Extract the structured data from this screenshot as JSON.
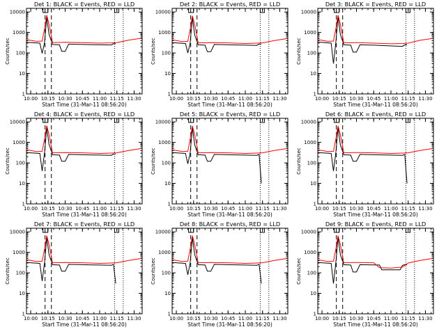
{
  "figure": {
    "start_time_label": "Start Time (31-Mar-11 08:56:20)",
    "ylabel": "Counts/sec",
    "x_tick_labels": [
      "10:00",
      "10:15",
      "10:30",
      "10:45",
      "11:00",
      "11:15",
      "11:30"
    ],
    "y_tick_labels": [
      "1",
      "10",
      "100",
      "1000",
      "10000"
    ],
    "colors": {
      "events": "#000000",
      "lld": "#ff0000",
      "axes": "#000000"
    }
  },
  "chart_data": [
    {
      "type": "line",
      "title": "Det 1: BLACK = Events, RED = LLD",
      "x_unit": "time",
      "xlim": [
        "09:56:20",
        "11:37:00"
      ],
      "ylim": [
        1,
        15000
      ],
      "yscale": "log",
      "dashed_lines": [
        "10:12:30",
        "10:18:00"
      ],
      "dotted_lines": [
        "11:13:00",
        "11:20:30"
      ],
      "series": [
        {
          "name": "Events",
          "x": [
            "09:56",
            "10:08",
            "10:10",
            "10:12",
            "10:14",
            "10:16",
            "10:19",
            "10:25",
            "10:27",
            "10:30",
            "10:33",
            "10:45",
            "11:00",
            "11:10",
            "11:12",
            "11:14"
          ],
          "y": [
            330,
            300,
            95,
            300,
            5500,
            800,
            260,
            250,
            120,
            120,
            270,
            260,
            250,
            245,
            280,
            280
          ]
        },
        {
          "name": "LLD",
          "x": [
            "09:56",
            "10:05",
            "10:10",
            "10:12",
            "10:14",
            "10:16",
            "10:19",
            "10:30",
            "10:45",
            "11:00",
            "11:10",
            "11:15",
            "11:25",
            "11:36"
          ],
          "y": [
            450,
            370,
            380,
            1500,
            7000,
            2500,
            320,
            330,
            320,
            300,
            310,
            320,
            420,
            520
          ]
        }
      ]
    },
    {
      "type": "line",
      "title": "Det 2: BLACK = Events, RED = LLD",
      "x_unit": "time",
      "xlim": [
        "09:56:20",
        "11:37:00"
      ],
      "ylim": [
        1,
        15000
      ],
      "yscale": "log",
      "dashed_lines": [
        "10:12:30",
        "10:18:00"
      ],
      "dotted_lines": [
        "11:13:00",
        "11:20:30"
      ],
      "series": [
        {
          "name": "Events",
          "x": [
            "09:56",
            "10:08",
            "10:10",
            "10:12",
            "10:14",
            "10:16",
            "10:19",
            "10:25",
            "10:27",
            "10:30",
            "10:33",
            "10:45",
            "11:00",
            "11:10",
            "11:12",
            "11:14"
          ],
          "y": [
            320,
            290,
            100,
            290,
            5200,
            750,
            250,
            240,
            115,
            115,
            260,
            250,
            240,
            235,
            270,
            270
          ]
        },
        {
          "name": "LLD",
          "x": [
            "09:56",
            "10:05",
            "10:10",
            "10:12",
            "10:14",
            "10:16",
            "10:19",
            "10:30",
            "10:45",
            "11:00",
            "11:10",
            "11:15",
            "11:25",
            "11:36"
          ],
          "y": [
            440,
            360,
            370,
            1400,
            6500,
            2400,
            310,
            320,
            310,
            290,
            300,
            310,
            400,
            500
          ]
        }
      ]
    },
    {
      "type": "line",
      "title": "Det 3: BLACK = Events, RED = LLD",
      "x_unit": "time",
      "xlim": [
        "09:56:20",
        "11:37:00"
      ],
      "ylim": [
        1,
        15000
      ],
      "yscale": "log",
      "dashed_lines": [
        "10:12:30",
        "10:18:00"
      ],
      "dotted_lines": [
        "11:13:00",
        "11:20:30"
      ],
      "series": [
        {
          "name": "Events",
          "x": [
            "09:56",
            "10:08",
            "10:10",
            "10:12",
            "10:14",
            "10:16",
            "10:19",
            "10:25",
            "10:27",
            "10:30",
            "10:33",
            "10:45",
            "11:00",
            "11:10",
            "11:12",
            "11:14"
          ],
          "y": [
            340,
            300,
            30,
            300,
            5600,
            800,
            250,
            240,
            110,
            110,
            250,
            240,
            220,
            210,
            250,
            250
          ]
        },
        {
          "name": "LLD",
          "x": [
            "09:56",
            "10:05",
            "10:10",
            "10:12",
            "10:14",
            "10:16",
            "10:19",
            "10:30",
            "10:45",
            "11:00",
            "11:10",
            "11:15",
            "11:25",
            "11:36"
          ],
          "y": [
            450,
            370,
            380,
            1500,
            7000,
            2500,
            310,
            320,
            300,
            280,
            290,
            300,
            410,
            510
          ]
        }
      ]
    },
    {
      "type": "line",
      "title": "Det 4: BLACK = Events, RED = LLD",
      "x_unit": "time",
      "xlim": [
        "09:56:20",
        "11:37:00"
      ],
      "ylim": [
        1,
        15000
      ],
      "yscale": "log",
      "dashed_lines": [
        "10:12:30",
        "10:18:00"
      ],
      "dotted_lines": [
        "11:13:00",
        "11:20:30"
      ],
      "series": [
        {
          "name": "Events",
          "x": [
            "09:56",
            "10:08",
            "10:10",
            "10:12",
            "10:14",
            "10:16",
            "10:19",
            "10:25",
            "10:27",
            "10:30",
            "10:33",
            "10:45",
            "11:00",
            "11:10",
            "11:12",
            "11:14"
          ],
          "y": [
            320,
            290,
            40,
            290,
            5300,
            780,
            250,
            240,
            120,
            120,
            260,
            250,
            240,
            235,
            270,
            270
          ]
        },
        {
          "name": "LLD",
          "x": [
            "09:56",
            "10:05",
            "10:10",
            "10:12",
            "10:14",
            "10:16",
            "10:19",
            "10:30",
            "10:45",
            "11:00",
            "11:10",
            "11:15",
            "11:25",
            "11:36"
          ],
          "y": [
            440,
            360,
            370,
            1400,
            6600,
            2400,
            310,
            320,
            310,
            290,
            300,
            310,
            400,
            500
          ]
        }
      ]
    },
    {
      "type": "line",
      "title": "Det 5: BLACK = Events, RED = LLD",
      "x_unit": "time",
      "xlim": [
        "09:56:20",
        "11:37:00"
      ],
      "ylim": [
        1,
        15000
      ],
      "yscale": "log",
      "dashed_lines": [
        "10:12:30",
        "10:18:00"
      ],
      "dotted_lines": [
        "11:13:00",
        "11:20:30"
      ],
      "series": [
        {
          "name": "Events",
          "x": [
            "09:56",
            "10:08",
            "10:10",
            "10:12",
            "10:14",
            "10:16",
            "10:19",
            "10:25",
            "10:27",
            "10:30",
            "10:33",
            "10:45",
            "11:00",
            "11:10",
            "11:12",
            "11:14"
          ],
          "y": [
            320,
            290,
            90,
            290,
            5200,
            760,
            250,
            240,
            120,
            120,
            260,
            250,
            240,
            235,
            260,
            10
          ]
        },
        {
          "name": "LLD",
          "x": [
            "09:56",
            "10:05",
            "10:10",
            "10:12",
            "10:14",
            "10:16",
            "10:19",
            "10:30",
            "10:45",
            "11:00",
            "11:10",
            "11:15",
            "11:25",
            "11:36"
          ],
          "y": [
            440,
            360,
            370,
            1400,
            6400,
            2400,
            310,
            320,
            310,
            290,
            300,
            310,
            400,
            500
          ]
        }
      ]
    },
    {
      "type": "line",
      "title": "Det 6: BLACK = Events, RED = LLD",
      "x_unit": "time",
      "xlim": [
        "09:56:20",
        "11:37:00"
      ],
      "ylim": [
        1,
        15000
      ],
      "yscale": "log",
      "dashed_lines": [
        "10:12:30",
        "10:18:00"
      ],
      "dotted_lines": [
        "11:13:00",
        "11:20:30"
      ],
      "series": [
        {
          "name": "Events",
          "x": [
            "09:56",
            "10:08",
            "10:10",
            "10:12",
            "10:14",
            "10:16",
            "10:19",
            "10:25",
            "10:27",
            "10:30",
            "10:33",
            "10:45",
            "11:00",
            "11:10",
            "11:12",
            "11:14"
          ],
          "y": [
            320,
            290,
            40,
            290,
            5200,
            760,
            250,
            240,
            120,
            120,
            260,
            250,
            240,
            235,
            260,
            10
          ]
        },
        {
          "name": "LLD",
          "x": [
            "09:56",
            "10:05",
            "10:10",
            "10:12",
            "10:14",
            "10:16",
            "10:19",
            "10:30",
            "10:45",
            "11:00",
            "11:10",
            "11:15",
            "11:25",
            "11:36"
          ],
          "y": [
            440,
            360,
            370,
            1400,
            6400,
            2400,
            310,
            320,
            310,
            290,
            300,
            310,
            400,
            500
          ]
        }
      ]
    },
    {
      "type": "line",
      "title": "Det 7: BLACK = Events, RED = LLD",
      "x_unit": "time",
      "xlim": [
        "09:56:20",
        "11:37:00"
      ],
      "ylim": [
        1,
        15000
      ],
      "yscale": "log",
      "dashed_lines": [
        "10:12:30",
        "10:18:00"
      ],
      "dotted_lines": [
        "11:13:00",
        "11:20:30"
      ],
      "series": [
        {
          "name": "Events",
          "x": [
            "09:56",
            "10:08",
            "10:10",
            "10:12",
            "10:14",
            "10:16",
            "10:19",
            "10:25",
            "10:27",
            "10:30",
            "10:33",
            "10:45",
            "11:00",
            "11:10",
            "11:12",
            "11:14"
          ],
          "y": [
            320,
            290,
            40,
            290,
            5300,
            770,
            250,
            240,
            120,
            120,
            260,
            250,
            240,
            235,
            260,
            30
          ]
        },
        {
          "name": "LLD",
          "x": [
            "09:56",
            "10:05",
            "10:10",
            "10:12",
            "10:14",
            "10:16",
            "10:19",
            "10:30",
            "10:45",
            "11:00",
            "11:10",
            "11:15",
            "11:25",
            "11:36"
          ],
          "y": [
            440,
            360,
            370,
            1400,
            6500,
            2400,
            310,
            320,
            310,
            290,
            300,
            310,
            400,
            500
          ]
        }
      ]
    },
    {
      "type": "line",
      "title": "Det 8: BLACK = Events, RED = LLD",
      "x_unit": "time",
      "xlim": [
        "09:56:20",
        "11:37:00"
      ],
      "ylim": [
        1,
        15000
      ],
      "yscale": "log",
      "dashed_lines": [
        "10:12:30",
        "10:18:00"
      ],
      "dotted_lines": [
        "11:13:00",
        "11:20:30"
      ],
      "series": [
        {
          "name": "Events",
          "x": [
            "09:56",
            "10:08",
            "10:10",
            "10:12",
            "10:14",
            "10:16",
            "10:19",
            "10:25",
            "10:27",
            "10:30",
            "10:33",
            "10:45",
            "11:00",
            "11:10",
            "11:12",
            "11:14"
          ],
          "y": [
            320,
            290,
            80,
            290,
            5300,
            770,
            250,
            240,
            120,
            120,
            260,
            250,
            240,
            235,
            260,
            30
          ]
        },
        {
          "name": "LLD",
          "x": [
            "09:56",
            "10:05",
            "10:10",
            "10:12",
            "10:14",
            "10:16",
            "10:19",
            "10:30",
            "10:45",
            "11:00",
            "11:10",
            "11:15",
            "11:25",
            "11:36"
          ],
          "y": [
            440,
            360,
            370,
            1400,
            6500,
            2400,
            310,
            320,
            310,
            290,
            300,
            310,
            400,
            500
          ]
        }
      ]
    },
    {
      "type": "line",
      "title": "Det 9: BLACK = Events, RED = LLD",
      "x_unit": "time",
      "xlim": [
        "09:56:20",
        "11:37:00"
      ],
      "ylim": [
        1,
        15000
      ],
      "yscale": "log",
      "dashed_lines": [
        "10:12:30",
        "10:18:00"
      ],
      "dotted_lines": [
        "11:13:00",
        "11:20:30"
      ],
      "series": [
        {
          "name": "Events",
          "x": [
            "09:56",
            "10:08",
            "10:10",
            "10:12",
            "10:14",
            "10:16",
            "10:19",
            "10:25",
            "10:27",
            "10:30",
            "10:33",
            "10:50",
            "10:52",
            "11:00",
            "11:08",
            "11:10",
            "11:12",
            "11:14"
          ],
          "y": [
            320,
            290,
            30,
            290,
            5300,
            770,
            250,
            240,
            110,
            110,
            250,
            240,
            140,
            140,
            140,
            230,
            250,
            250
          ]
        },
        {
          "name": "LLD",
          "x": [
            "09:56",
            "10:05",
            "10:10",
            "10:12",
            "10:14",
            "10:16",
            "10:19",
            "10:30",
            "10:45",
            "10:50",
            "11:00",
            "11:10",
            "11:15",
            "11:25",
            "11:36"
          ],
          "y": [
            440,
            360,
            370,
            1400,
            6500,
            2400,
            310,
            320,
            310,
            180,
            170,
            190,
            300,
            400,
            500
          ]
        }
      ]
    }
  ]
}
